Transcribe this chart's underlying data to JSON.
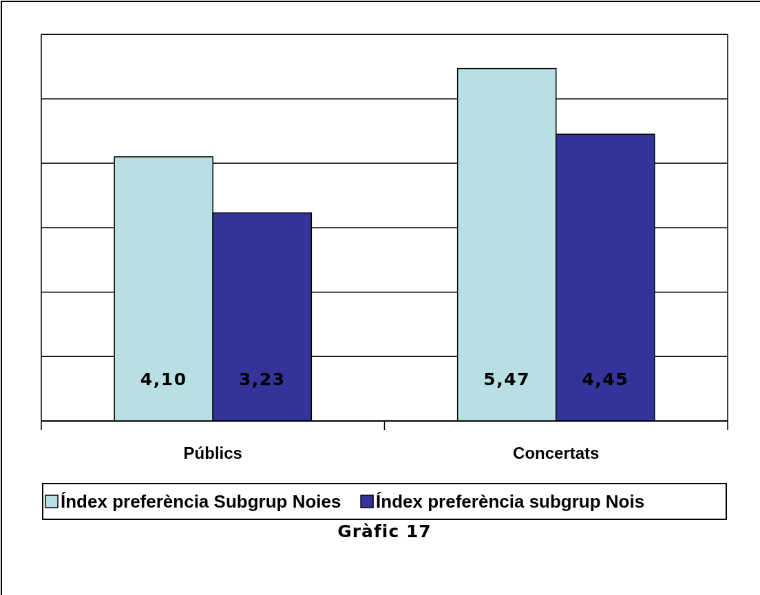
{
  "chart_data": {
    "type": "bar",
    "title": "Gràfic 17",
    "categories": [
      "Públics",
      "Concertats"
    ],
    "series": [
      {
        "name": "Índex preferència Subgrup Noies",
        "color": "#b8e0e2",
        "values": [
          4.1,
          5.47
        ],
        "value_labels": [
          "4,10",
          "5,47"
        ]
      },
      {
        "name": "Índex preferència subgrup Nois",
        "color": "#333399",
        "values": [
          3.23,
          4.45
        ],
        "value_labels": [
          "3,23",
          "4,45"
        ]
      }
    ],
    "ylim": [
      0,
      6
    ],
    "yticks": [
      {
        "value": 0,
        "label": null
      },
      {
        "value": 1,
        "label": null
      },
      {
        "value": 2,
        "label": null
      },
      {
        "value": 3,
        "label": null
      },
      {
        "value": 4,
        "label": null
      },
      {
        "value": 5,
        "label": null
      },
      {
        "value": 6,
        "label": null
      }
    ],
    "grid": "y",
    "legend": "bottom"
  }
}
